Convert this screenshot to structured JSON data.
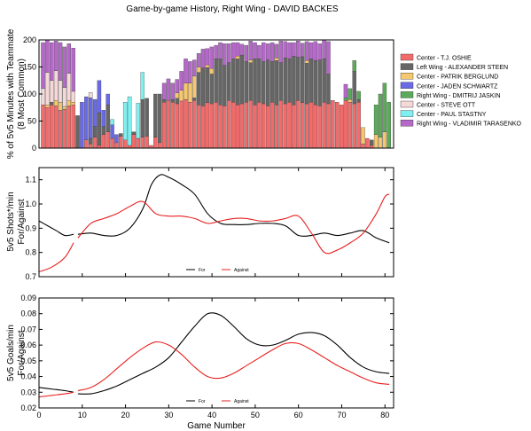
{
  "chart_data": [
    {
      "type": "bar",
      "stacked": true,
      "title": "Game-by-game History, Right Wing - DAVID BACKES",
      "ylabel": [
        "% of 5v5 Minutes with Teammate",
        "(8 Most Common)"
      ],
      "xlim": [
        0,
        82
      ],
      "ylim": [
        0,
        200
      ],
      "yticks": [
        0,
        50,
        100,
        150,
        200
      ],
      "legend_position": "right",
      "series": [
        {
          "name": "Center - T.J. OSHIE",
          "color": "#f26b6b",
          "values": [
            80,
            75,
            80,
            78,
            70,
            72,
            78,
            80,
            0,
            0,
            15,
            8,
            20,
            5,
            25,
            30,
            18,
            10,
            22,
            15,
            5,
            25,
            18,
            20,
            22,
            5,
            20,
            10,
            85,
            88,
            85,
            82,
            87,
            90,
            85,
            88,
            80,
            78,
            84,
            82,
            85,
            80,
            78,
            88,
            85,
            80,
            82,
            85,
            88,
            80,
            85,
            82,
            78,
            85,
            80,
            88,
            82,
            85,
            80,
            88,
            84,
            82,
            85,
            80,
            78,
            85,
            82,
            88,
            85,
            80,
            88,
            85,
            82,
            85,
            8,
            18,
            5,
            0,
            0,
            0,
            0
          ]
        },
        {
          "name": "Left Wing - ALEXANDER STEEN",
          "color": "#666666",
          "values": [
            0,
            0,
            5,
            0,
            0,
            0,
            0,
            0,
            60,
            0,
            0,
            10,
            20,
            60,
            15,
            50,
            0,
            0,
            5,
            0,
            0,
            5,
            0,
            70,
            70,
            0,
            80,
            90,
            5,
            0,
            5,
            10,
            0,
            0,
            0,
            5,
            60,
            70,
            65,
            55,
            80,
            85,
            75,
            70,
            80,
            85,
            90,
            75,
            70,
            85,
            80,
            78,
            85,
            75,
            82,
            70,
            85,
            80,
            90,
            80,
            85,
            75,
            80,
            82,
            85,
            80,
            55,
            0,
            0,
            0,
            0,
            0,
            60,
            5,
            0,
            0,
            10,
            0,
            0,
            0,
            0
          ]
        },
        {
          "name": "Center - PATRIK BERGLUND",
          "color": "#f5c870",
          "values": [
            0,
            5,
            0,
            10,
            15,
            5,
            10,
            5,
            0,
            0,
            0,
            0,
            0,
            0,
            0,
            0,
            0,
            0,
            0,
            0,
            0,
            0,
            0,
            0,
            0,
            0,
            0,
            0,
            0,
            0,
            0,
            10,
            20,
            30,
            35,
            40,
            10,
            0,
            5,
            10,
            0,
            0,
            0,
            0,
            0,
            5,
            0,
            0,
            5,
            0,
            0,
            0,
            0,
            0,
            5,
            0,
            0,
            0,
            0,
            0,
            0,
            5,
            0,
            0,
            0,
            0,
            0,
            0,
            0,
            0,
            0,
            5,
            0,
            0,
            30,
            0,
            0,
            25,
            20,
            30,
            0
          ]
        },
        {
          "name": "Center - JADEN SCHWARTZ",
          "color": "#6a6ae6",
          "values": [
            0,
            0,
            0,
            0,
            0,
            0,
            0,
            0,
            0,
            85,
            80,
            75,
            50,
            60,
            30,
            20,
            25,
            15,
            0,
            0,
            0,
            0,
            0,
            0,
            0,
            0,
            0,
            0,
            0,
            0,
            0,
            0,
            0,
            0,
            0,
            0,
            0,
            0,
            0,
            0,
            0,
            0,
            0,
            0,
            0,
            0,
            0,
            0,
            0,
            0,
            0,
            0,
            0,
            0,
            0,
            0,
            0,
            0,
            0,
            0,
            0,
            0,
            0,
            0,
            0,
            0,
            0,
            0,
            0,
            0,
            0,
            0,
            0,
            0,
            0,
            0,
            0,
            0,
            0,
            0,
            0
          ]
        },
        {
          "name": "Right Wing - DMITRIJ JASKIN",
          "color": "#5aaa5a",
          "values": [
            0,
            0,
            0,
            0,
            0,
            0,
            0,
            0,
            0,
            0,
            0,
            0,
            0,
            0,
            0,
            0,
            0,
            0,
            0,
            0,
            0,
            0,
            0,
            0,
            0,
            0,
            0,
            0,
            0,
            0,
            0,
            0,
            0,
            0,
            0,
            0,
            0,
            0,
            0,
            0,
            0,
            0,
            0,
            0,
            0,
            0,
            0,
            0,
            0,
            0,
            0,
            0,
            0,
            0,
            0,
            0,
            0,
            0,
            0,
            0,
            0,
            0,
            0,
            0,
            0,
            0,
            0,
            0,
            0,
            0,
            5,
            20,
            20,
            15,
            0,
            0,
            0,
            55,
            80,
            90,
            85
          ]
        },
        {
          "name": "Center - STEVE OTT",
          "color": "#f5d8d8",
          "values": [
            30,
            60,
            40,
            55,
            40,
            35,
            50,
            20,
            0,
            0,
            0,
            10,
            0,
            0,
            0,
            0,
            0,
            0,
            0,
            0,
            0,
            0,
            0,
            0,
            0,
            0,
            0,
            0,
            0,
            0,
            0,
            0,
            0,
            0,
            0,
            0,
            0,
            0,
            0,
            0,
            0,
            0,
            0,
            0,
            0,
            0,
            0,
            0,
            0,
            0,
            0,
            0,
            0,
            0,
            0,
            0,
            0,
            0,
            0,
            0,
            0,
            0,
            0,
            0,
            0,
            0,
            0,
            0,
            0,
            0,
            0,
            0,
            0,
            0,
            0,
            0,
            0,
            0,
            0,
            0,
            0
          ]
        },
        {
          "name": "Center - PAUL STASTNY",
          "color": "#7ef0f0",
          "values": [
            0,
            0,
            0,
            0,
            0,
            0,
            0,
            0,
            0,
            0,
            0,
            0,
            0,
            0,
            0,
            0,
            10,
            0,
            0,
            70,
            90,
            0,
            65,
            50,
            0,
            0,
            0,
            0,
            0,
            0,
            0,
            0,
            0,
            0,
            0,
            0,
            0,
            0,
            0,
            0,
            0,
            0,
            0,
            0,
            0,
            0,
            0,
            0,
            0,
            0,
            0,
            0,
            0,
            0,
            0,
            0,
            0,
            0,
            0,
            0,
            0,
            0,
            0,
            0,
            0,
            0,
            0,
            0,
            0,
            0,
            0,
            0,
            0,
            0,
            0,
            0,
            0,
            0,
            0,
            0,
            0
          ]
        },
        {
          "name": "Right Wing - VLADIMIR TARASENKO",
          "color": "#b468c8",
          "values": [
            85,
            60,
            70,
            55,
            70,
            75,
            55,
            80,
            0,
            0,
            0,
            0,
            0,
            0,
            0,
            0,
            0,
            0,
            0,
            0,
            0,
            0,
            0,
            0,
            0,
            0,
            0,
            0,
            30,
            40,
            30,
            25,
            35,
            45,
            40,
            30,
            25,
            35,
            30,
            40,
            25,
            30,
            40,
            35,
            30,
            25,
            20,
            30,
            35,
            30,
            25,
            35,
            30,
            35,
            25,
            40,
            30,
            30,
            25,
            30,
            25,
            35,
            30,
            35,
            30,
            35,
            60,
            0,
            0,
            0,
            25,
            0,
            0,
            0,
            0,
            0,
            0,
            0,
            0,
            0,
            0
          ]
        }
      ]
    },
    {
      "type": "line",
      "xlim": [
        0,
        82
      ],
      "ylim": [
        0.7,
        1.15
      ],
      "yticks": [
        0.7,
        0.8,
        0.9,
        1.0,
        1.1
      ],
      "ylabel": [
        "5v5 Shots*/min",
        "For/Against"
      ],
      "legend_position": "bottom-center",
      "series": [
        {
          "name": "For",
          "color": "#000000",
          "x": [
            0,
            2,
            4,
            6,
            8,
            9,
            12,
            15,
            18,
            21,
            24,
            26,
            28,
            30,
            33,
            36,
            39,
            42,
            45,
            48,
            51,
            54,
            57,
            60,
            63,
            66,
            69,
            72,
            75,
            78,
            81
          ],
          "values": [
            0.93,
            0.91,
            0.89,
            0.87,
            0.875,
            0.875,
            0.88,
            0.87,
            0.87,
            0.9,
            0.98,
            1.08,
            1.12,
            1.11,
            1.08,
            1.04,
            0.96,
            0.92,
            0.915,
            0.915,
            0.92,
            0.92,
            0.91,
            0.87,
            0.87,
            0.88,
            0.87,
            0.88,
            0.89,
            0.86,
            0.84
          ]
        },
        {
          "name": "Against",
          "color": "#e82020",
          "x": [
            0,
            3,
            6,
            8,
            9,
            12,
            15,
            18,
            21,
            24,
            27,
            30,
            33,
            36,
            39,
            42,
            45,
            48,
            51,
            54,
            57,
            60,
            63,
            66,
            69,
            72,
            75,
            78,
            80,
            81
          ],
          "values": [
            0.72,
            0.74,
            0.78,
            0.84,
            0.86,
            0.92,
            0.94,
            0.96,
            0.99,
            1.01,
            0.96,
            0.95,
            0.95,
            0.94,
            0.92,
            0.93,
            0.94,
            0.94,
            0.93,
            0.93,
            0.94,
            0.95,
            0.88,
            0.8,
            0.81,
            0.84,
            0.88,
            0.96,
            1.03,
            1.04
          ]
        }
      ]
    },
    {
      "type": "line",
      "xlim": [
        0,
        82
      ],
      "ylim": [
        0.02,
        0.09
      ],
      "yticks": [
        0.02,
        0.03,
        0.04,
        0.05,
        0.06,
        0.07,
        0.08,
        0.09
      ],
      "xticks": [
        0,
        10,
        20,
        30,
        40,
        50,
        60,
        70,
        80
      ],
      "xlabel": "Game Number",
      "ylabel": [
        "5v5 Goals/min",
        "For/Against"
      ],
      "legend_position": "bottom-center",
      "series": [
        {
          "name": "For",
          "color": "#000000",
          "x": [
            0,
            3,
            6,
            8,
            9,
            12,
            15,
            18,
            21,
            24,
            27,
            30,
            33,
            36,
            39,
            42,
            45,
            48,
            51,
            54,
            57,
            60,
            63,
            66,
            69,
            72,
            75,
            78,
            81
          ],
          "values": [
            0.033,
            0.032,
            0.031,
            0.03,
            0.029,
            0.029,
            0.031,
            0.034,
            0.038,
            0.042,
            0.046,
            0.052,
            0.062,
            0.072,
            0.08,
            0.079,
            0.072,
            0.064,
            0.06,
            0.06,
            0.063,
            0.067,
            0.068,
            0.066,
            0.06,
            0.052,
            0.046,
            0.043,
            0.042
          ]
        },
        {
          "name": "Against",
          "color": "#e82020",
          "x": [
            0,
            3,
            6,
            8,
            9,
            12,
            15,
            18,
            21,
            24,
            27,
            30,
            33,
            36,
            39,
            42,
            45,
            48,
            51,
            54,
            57,
            60,
            63,
            66,
            69,
            72,
            75,
            78,
            81
          ],
          "values": [
            0.027,
            0.028,
            0.029,
            0.03,
            0.031,
            0.033,
            0.038,
            0.045,
            0.052,
            0.058,
            0.062,
            0.06,
            0.054,
            0.046,
            0.04,
            0.039,
            0.042,
            0.047,
            0.052,
            0.057,
            0.061,
            0.061,
            0.057,
            0.052,
            0.047,
            0.043,
            0.039,
            0.036,
            0.035
          ]
        }
      ]
    }
  ]
}
